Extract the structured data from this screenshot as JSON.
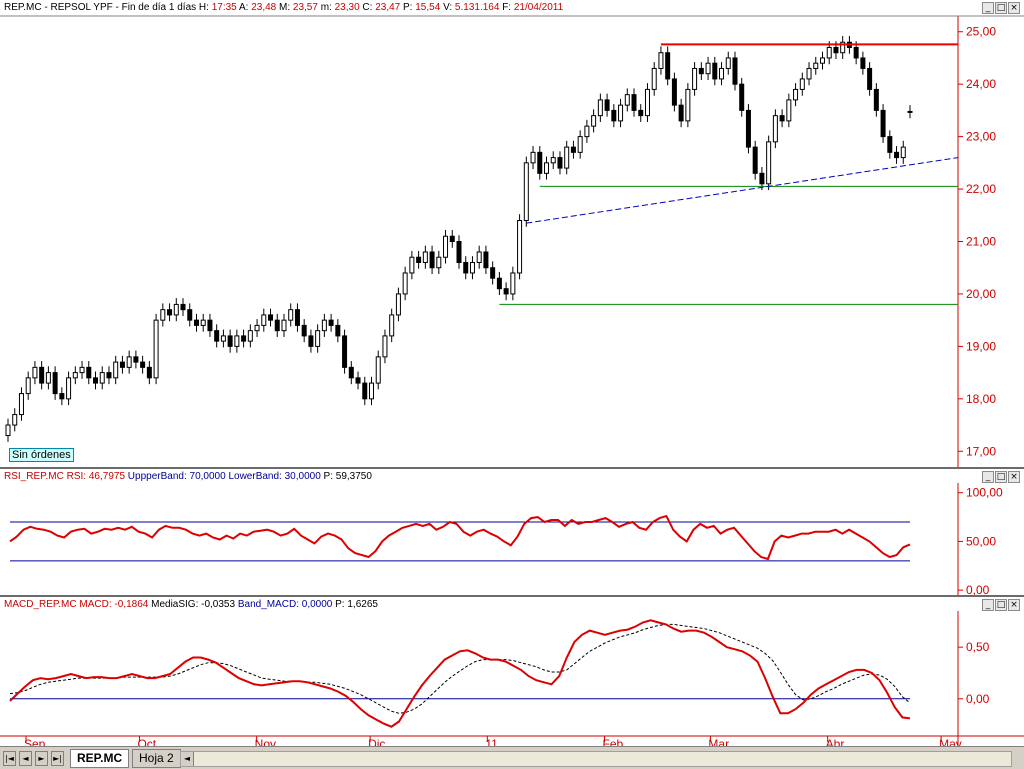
{
  "price_header": {
    "symbol": "REP.MC",
    "name": "REPSOL YPF",
    "period": "Fin de día 1 días",
    "h_label": "H:",
    "h_value": "17:35",
    "a_label": "A:",
    "a_value": "23,48",
    "m_label": "M:",
    "m_value": "23,57",
    "lo_label": "m:",
    "lo_value": "23,30",
    "c_label": "C:",
    "c_value": "23,47",
    "p_label": "P:",
    "p_value": "15,54",
    "v_label": "V:",
    "v_value": "5.131.164",
    "f_label": "F:",
    "f_value": "21/04/2011"
  },
  "rsi_header": {
    "name": "RSI_REP.MC",
    "rsi_label": "RSI:",
    "rsi_value": "46,7975",
    "upper_label": "UppperBand:",
    "upper_value": "70,0000",
    "lower_label": "LowerBand:",
    "lower_value": "30,0000",
    "p_label": "P:",
    "p_value": "59,3750"
  },
  "macd_header": {
    "name": "MACD_REP.MC",
    "macd_label": "MACD:",
    "macd_value": "-0,1864",
    "sig_label": "MediaSIG:",
    "sig_value": "-0,0353",
    "band_label": "Band_MACD:",
    "band_value": "0,0000",
    "p_label": "P:",
    "p_value": "1,6265"
  },
  "order_label": "Sin órdenes",
  "window_buttons": {
    "min": "_",
    "max": "□",
    "close": "×"
  },
  "tabs": [
    {
      "label": "REP.MC",
      "active": true
    },
    {
      "label": "Hoja 2",
      "active": false
    }
  ],
  "nav_buttons": {
    "first": "|◄",
    "prev": "◄",
    "next": "►",
    "last": "►|"
  },
  "x_axis": {
    "months": [
      {
        "label": "Sep",
        "day": 0
      },
      {
        "label": "Oct",
        "day": 30
      },
      {
        "label": "Nov",
        "day": 61
      },
      {
        "label": "Dic",
        "day": 91
      },
      {
        "label": "11",
        "day": 122
      },
      {
        "label": "Feb",
        "day": 153
      },
      {
        "label": "Mar",
        "day": 181
      },
      {
        "label": "Abr",
        "day": 212
      },
      {
        "label": "May",
        "day": 242
      }
    ],
    "start_date": "2010-09-01",
    "end_date": "2011-05-06"
  },
  "colors": {
    "axis_red": "#d00000",
    "rsi_line": "#dd0000",
    "macd_line": "#dd0000",
    "band_blue": "#000099",
    "resistance": "#ee0000",
    "support": "#008800",
    "trend": "#0000cc",
    "candle": "#000000"
  },
  "chart_data": [
    {
      "type": "candlestick",
      "series_name": "REP.MC",
      "ylim": [
        16.7,
        25.3
      ],
      "yticks": [
        "17,00",
        "18,00",
        "19,00",
        "20,00",
        "21,00",
        "22,00",
        "23,00",
        "24,00",
        "25,00"
      ],
      "ytick_values": [
        17,
        18,
        19,
        20,
        21,
        22,
        23,
        24,
        25
      ],
      "close": [
        17.5,
        17.7,
        18.1,
        18.4,
        18.6,
        18.3,
        18.5,
        18.1,
        18.0,
        18.4,
        18.5,
        18.6,
        18.4,
        18.3,
        18.5,
        18.4,
        18.7,
        18.6,
        18.8,
        18.7,
        18.6,
        18.4,
        19.5,
        19.7,
        19.6,
        19.8,
        19.7,
        19.5,
        19.4,
        19.5,
        19.3,
        19.1,
        19.2,
        19.0,
        19.2,
        19.1,
        19.3,
        19.4,
        19.6,
        19.5,
        19.3,
        19.5,
        19.7,
        19.4,
        19.2,
        19.0,
        19.3,
        19.5,
        19.4,
        19.2,
        18.6,
        18.4,
        18.3,
        18.0,
        18.3,
        18.8,
        19.2,
        19.6,
        20.0,
        20.4,
        20.7,
        20.6,
        20.8,
        20.5,
        20.7,
        21.1,
        21.0,
        20.6,
        20.4,
        20.6,
        20.8,
        20.5,
        20.3,
        20.1,
        20.0,
        20.4,
        21.4,
        22.5,
        22.7,
        22.3,
        22.5,
        22.6,
        22.4,
        22.8,
        22.7,
        23.0,
        23.2,
        23.4,
        23.7,
        23.5,
        23.3,
        23.6,
        23.8,
        23.5,
        23.4,
        23.9,
        24.3,
        24.6,
        24.1,
        23.6,
        23.3,
        23.9,
        24.3,
        24.2,
        24.4,
        24.1,
        24.3,
        24.5,
        24.0,
        23.5,
        22.8,
        22.3,
        22.1,
        22.9,
        23.4,
        23.3,
        23.7,
        23.9,
        24.1,
        24.3,
        24.4,
        24.5,
        24.7,
        24.6,
        24.8,
        24.7,
        24.5,
        24.3,
        23.9,
        23.5,
        23.0,
        22.7,
        22.6,
        22.8,
        23.47
      ],
      "open": [
        17.3,
        17.5,
        17.7,
        18.1,
        18.4,
        18.6,
        18.3,
        18.5,
        18.1,
        18.0,
        18.4,
        18.5,
        18.6,
        18.4,
        18.3,
        18.5,
        18.4,
        18.7,
        18.6,
        18.8,
        18.7,
        18.6,
        18.4,
        19.5,
        19.7,
        19.6,
        19.8,
        19.7,
        19.5,
        19.4,
        19.5,
        19.3,
        19.1,
        19.2,
        19.0,
        19.2,
        19.1,
        19.3,
        19.4,
        19.6,
        19.5,
        19.3,
        19.5,
        19.7,
        19.4,
        19.2,
        19.0,
        19.3,
        19.5,
        19.4,
        19.2,
        18.6,
        18.4,
        18.3,
        18.0,
        18.3,
        18.8,
        19.2,
        19.6,
        20.0,
        20.4,
        20.7,
        20.6,
        20.8,
        20.5,
        20.7,
        21.1,
        21.0,
        20.6,
        20.4,
        20.6,
        20.8,
        20.5,
        20.3,
        20.1,
        20.0,
        20.4,
        21.4,
        22.5,
        22.7,
        22.3,
        22.5,
        22.6,
        22.4,
        22.8,
        22.7,
        23.0,
        23.2,
        23.4,
        23.7,
        23.5,
        23.3,
        23.6,
        23.8,
        23.5,
        23.4,
        23.9,
        24.3,
        24.6,
        24.1,
        23.6,
        23.3,
        23.9,
        24.3,
        24.2,
        24.4,
        24.1,
        24.3,
        24.5,
        24.0,
        23.5,
        22.8,
        22.3,
        22.1,
        22.9,
        23.4,
        23.3,
        23.7,
        23.9,
        24.1,
        24.3,
        24.4,
        24.5,
        24.7,
        24.6,
        24.8,
        24.7,
        24.5,
        24.3,
        23.9,
        23.5,
        23.0,
        22.7,
        22.6,
        23.48
      ],
      "resistance": {
        "y": 24.76,
        "from_bar": 97,
        "to_bar": 140
      },
      "support_upper": {
        "y": 22.05,
        "from_bar": 79,
        "to_bar": 140
      },
      "support_lower": {
        "y": 19.8,
        "from_bar": 73,
        "to_bar": 140
      },
      "trendline": {
        "y1": 21.35,
        "from_bar": 77,
        "y2": 22.6,
        "to_bar": 140
      }
    },
    {
      "type": "line",
      "series_name": "RSI_REP.MC",
      "ylim": [
        -5,
        110
      ],
      "yticks": [
        "0,00",
        "50,00",
        "100,00"
      ],
      "ytick_values": [
        0,
        50,
        100
      ],
      "upper_band": 70,
      "lower_band": 30,
      "values": [
        50,
        55,
        62,
        65,
        63,
        62,
        60,
        56,
        54,
        60,
        62,
        63,
        58,
        60,
        63,
        62,
        64,
        62,
        65,
        60,
        58,
        54,
        62,
        66,
        64,
        64,
        62,
        58,
        56,
        58,
        54,
        52,
        56,
        53,
        58,
        56,
        60,
        61,
        62,
        60,
        56,
        58,
        63,
        56,
        52,
        48,
        55,
        58,
        56,
        52,
        43,
        38,
        36,
        34,
        40,
        50,
        56,
        60,
        64,
        66,
        68,
        66,
        68,
        62,
        65,
        70,
        68,
        60,
        56,
        60,
        62,
        58,
        55,
        50,
        46,
        55,
        68,
        74,
        75,
        70,
        72,
        72,
        66,
        72,
        68,
        70,
        70,
        72,
        74,
        70,
        65,
        68,
        70,
        64,
        62,
        70,
        74,
        76,
        62,
        55,
        50,
        62,
        68,
        64,
        66,
        58,
        62,
        64,
        56,
        48,
        40,
        34,
        32,
        50,
        56,
        54,
        56,
        58,
        58,
        60,
        60,
        60,
        62,
        58,
        62,
        58,
        54,
        50,
        44,
        38,
        34,
        36,
        44,
        47
      ],
      "marker_label_placeholder": ""
    },
    {
      "type": "line",
      "series_name": "MACD_REP.MC",
      "ylim": [
        -0.36,
        0.85
      ],
      "yticks": [
        "0,00",
        "0,50"
      ],
      "ytick_values": [
        0,
        0.5
      ],
      "band": 0,
      "macd": [
        -0.02,
        0.05,
        0.12,
        0.18,
        0.2,
        0.19,
        0.2,
        0.22,
        0.24,
        0.22,
        0.2,
        0.21,
        0.21,
        0.2,
        0.2,
        0.22,
        0.24,
        0.22,
        0.2,
        0.2,
        0.22,
        0.24,
        0.3,
        0.36,
        0.4,
        0.4,
        0.38,
        0.35,
        0.3,
        0.25,
        0.2,
        0.17,
        0.14,
        0.13,
        0.14,
        0.15,
        0.16,
        0.17,
        0.17,
        0.16,
        0.14,
        0.12,
        0.1,
        0.07,
        0.03,
        -0.03,
        -0.1,
        -0.16,
        -0.2,
        -0.24,
        -0.27,
        -0.22,
        -0.1,
        0.02,
        0.13,
        0.22,
        0.3,
        0.38,
        0.42,
        0.46,
        0.47,
        0.44,
        0.4,
        0.38,
        0.38,
        0.36,
        0.32,
        0.28,
        0.22,
        0.18,
        0.16,
        0.14,
        0.22,
        0.4,
        0.55,
        0.62,
        0.66,
        0.64,
        0.62,
        0.64,
        0.66,
        0.67,
        0.7,
        0.74,
        0.76,
        0.74,
        0.72,
        0.68,
        0.65,
        0.66,
        0.66,
        0.64,
        0.6,
        0.55,
        0.5,
        0.48,
        0.46,
        0.42,
        0.36,
        0.2,
        0.02,
        -0.14,
        -0.14,
        -0.1,
        -0.04,
        0.04,
        0.1,
        0.14,
        0.18,
        0.22,
        0.26,
        0.28,
        0.28,
        0.25,
        0.18,
        0.06,
        -0.08,
        -0.18,
        -0.19
      ],
      "signal": [
        0.05,
        0.06,
        0.08,
        0.11,
        0.14,
        0.16,
        0.17,
        0.18,
        0.19,
        0.2,
        0.2,
        0.2,
        0.2,
        0.2,
        0.2,
        0.21,
        0.21,
        0.21,
        0.21,
        0.21,
        0.21,
        0.22,
        0.24,
        0.27,
        0.3,
        0.33,
        0.35,
        0.35,
        0.34,
        0.32,
        0.29,
        0.26,
        0.23,
        0.2,
        0.19,
        0.18,
        0.17,
        0.17,
        0.17,
        0.16,
        0.16,
        0.15,
        0.14,
        0.12,
        0.1,
        0.07,
        0.04,
        0.0,
        -0.04,
        -0.08,
        -0.12,
        -0.14,
        -0.13,
        -0.1,
        -0.05,
        0.02,
        0.09,
        0.16,
        0.22,
        0.27,
        0.32,
        0.36,
        0.38,
        0.38,
        0.38,
        0.38,
        0.37,
        0.35,
        0.33,
        0.31,
        0.28,
        0.26,
        0.26,
        0.28,
        0.34,
        0.4,
        0.46,
        0.5,
        0.54,
        0.57,
        0.6,
        0.62,
        0.64,
        0.67,
        0.69,
        0.71,
        0.72,
        0.72,
        0.71,
        0.7,
        0.69,
        0.68,
        0.66,
        0.64,
        0.61,
        0.58,
        0.55,
        0.52,
        0.49,
        0.44,
        0.37,
        0.26,
        0.14,
        0.04,
        -0.01,
        0.0,
        0.03,
        0.07,
        0.1,
        0.14,
        0.17,
        0.2,
        0.23,
        0.24,
        0.23,
        0.19,
        0.12,
        0.02,
        -0.04
      ]
    }
  ]
}
